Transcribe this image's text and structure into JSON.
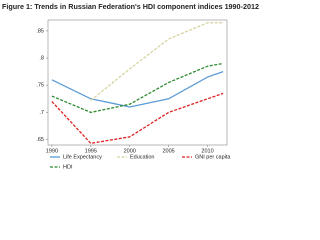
{
  "chart_data": {
    "type": "line",
    "title": "Figure 1: Trends in Russian Federation's HDI component indices 1990-2012",
    "x": [
      1990,
      1995,
      2000,
      2005,
      2010,
      2012
    ],
    "series": [
      {
        "name": "Life Expectancy",
        "color": "#5b9bd5",
        "dash": "solid",
        "values": [
          0.76,
          0.725,
          0.71,
          0.725,
          0.765,
          0.775
        ]
      },
      {
        "name": "Education",
        "color": "#d8d3a0",
        "dash": "dashed",
        "values": [
          null,
          0.722,
          0.78,
          0.835,
          0.865,
          0.865
        ]
      },
      {
        "name": "GNI per capita",
        "color": "#e02020",
        "dash": "dashed",
        "values": [
          0.72,
          0.643,
          0.655,
          0.7,
          0.725,
          0.735
        ]
      },
      {
        "name": "HDI",
        "color": "#2e8b2e",
        "dash": "dashed",
        "values": [
          0.73,
          0.7,
          0.715,
          0.755,
          0.785,
          0.79
        ]
      }
    ],
    "xlim": [
      1989.5,
      2012.5
    ],
    "xticks": [
      1990,
      1995,
      2000,
      2005,
      2010
    ],
    "ylim": [
      0.64,
      0.87
    ],
    "yticks": [
      {
        "value": 0.65,
        "label": ".65"
      },
      {
        "value": 0.7,
        "label": ".7"
      },
      {
        "value": 0.75,
        "label": ".75"
      },
      {
        "value": 0.8,
        "label": ".8"
      },
      {
        "value": 0.85,
        "label": ".85"
      }
    ],
    "grid": false
  }
}
